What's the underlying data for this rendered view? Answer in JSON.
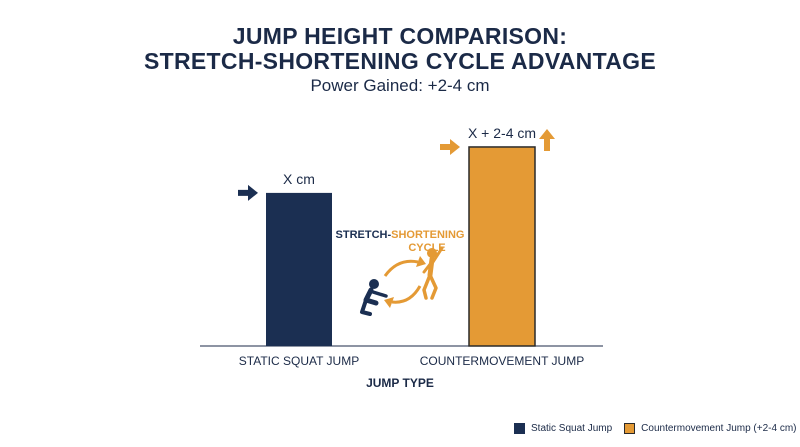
{
  "title_line1": "JUMP HEIGHT COMPARISON:",
  "title_line2": "STRETCH-SHORTENING CYCLE ADVANTAGE",
  "subtitle": "Power Gained: +2-4 cm",
  "colors": {
    "static": "#1b2f52",
    "counter": "#e49a35",
    "counter_border": "#2a2a2a",
    "text": "#1b2a47"
  },
  "chart_data": {
    "type": "bar",
    "categories": [
      "STATIC SQUAT JUMP",
      "COUNTERMOVEMENT JUMP"
    ],
    "values": [
      1.0,
      1.3
    ],
    "bar_labels": [
      "X cm",
      "X + 2-4 cm"
    ],
    "xlabel": "JUMP TYPE",
    "ylabel": "",
    "ylim": [
      0,
      1.45
    ],
    "grid": false,
    "legend_position": "bottom-right",
    "legend": [
      "Static Squat Jump",
      "Countermovement Jump (+2-4 cm)"
    ],
    "annotation": {
      "part1": "STRETCH-",
      "part2": "SHORTENING",
      "part3": "CYCLE"
    }
  }
}
